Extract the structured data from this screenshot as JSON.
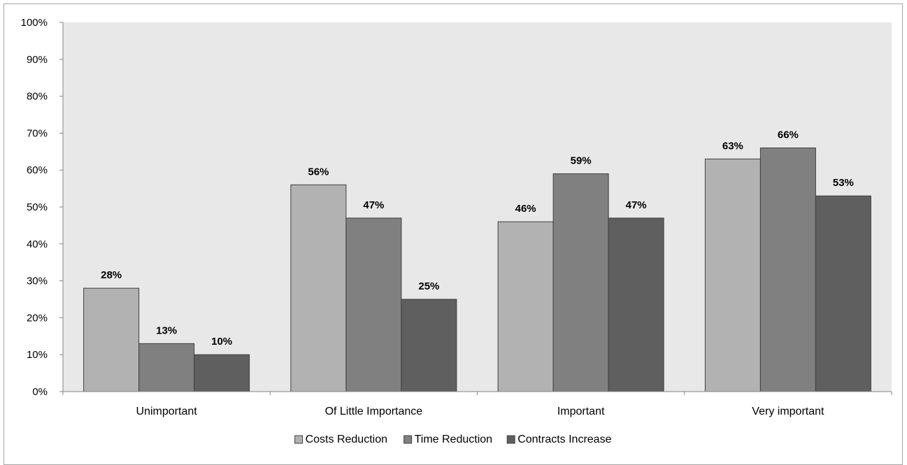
{
  "chart_data": {
    "type": "bar",
    "categories": [
      "Unimportant",
      "Of Little Importance",
      "Important",
      "Very important"
    ],
    "series": [
      {
        "name": "Costs Reduction",
        "values": [
          28,
          56,
          46,
          63
        ],
        "labels": [
          "28%",
          "56%",
          "46%",
          "63%"
        ],
        "color": "#b2b2b2"
      },
      {
        "name": "Time Reduction",
        "values": [
          13,
          47,
          59,
          66
        ],
        "labels": [
          "13%",
          "47%",
          "59%",
          "66%"
        ],
        "color": "#808080"
      },
      {
        "name": "Contracts Increase",
        "values": [
          10,
          25,
          47,
          53
        ],
        "labels": [
          "10%",
          "25%",
          "47%",
          "53%"
        ],
        "color": "#5f5f5f"
      }
    ],
    "ylim": [
      0,
      100
    ],
    "yticks": [
      "0%",
      "10%",
      "20%",
      "30%",
      "40%",
      "50%",
      "60%",
      "70%",
      "80%",
      "90%",
      "100%"
    ],
    "grid": false,
    "legend_position": "bottom",
    "plot_background": "#e8e8e8",
    "title": "",
    "xlabel": "",
    "ylabel": ""
  }
}
